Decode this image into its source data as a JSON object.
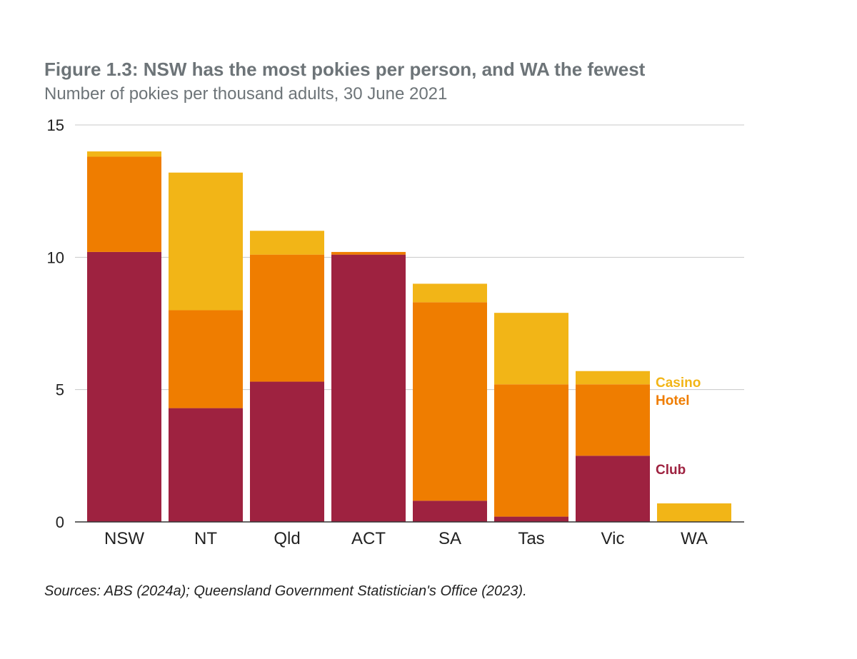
{
  "chart_data": {
    "type": "bar",
    "stacked": true,
    "title": "Figure 1.3: NSW has the most pokies per person, and WA the fewest",
    "subtitle": "Number of pokies per thousand adults, 30 June 2021",
    "source": "Sources: ABS (2024a); Queensland Government Statistician's Office (2023).",
    "categories": [
      "NSW",
      "NT",
      "Qld",
      "ACT",
      "SA",
      "Tas",
      "Vic",
      "WA"
    ],
    "ylim": [
      0,
      15
    ],
    "yticks": [
      0,
      5,
      10,
      15
    ],
    "grid": true,
    "legend_placement": "right, inline labels",
    "series": [
      {
        "name": "Club",
        "color": "#9e2240",
        "values": [
          10.2,
          4.3,
          5.3,
          10.1,
          0.8,
          0.2,
          2.5,
          0
        ]
      },
      {
        "name": "Hotel",
        "color": "#ef7d00",
        "values": [
          3.6,
          3.7,
          4.8,
          0.1,
          7.5,
          5.0,
          2.7,
          0
        ]
      },
      {
        "name": "Casino",
        "color": "#f2b517",
        "values": [
          0.2,
          5.2,
          0.9,
          0.0,
          0.7,
          2.7,
          0.5,
          0.7
        ]
      }
    ]
  }
}
